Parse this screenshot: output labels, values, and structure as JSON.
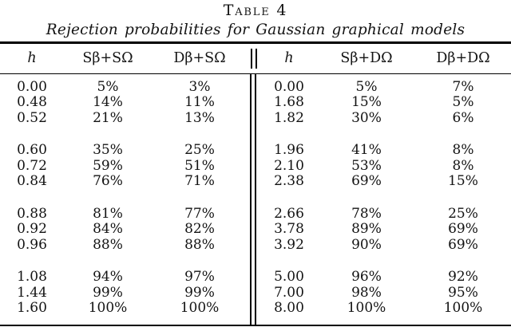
{
  "title": "Table 4",
  "subtitle": "Rejection probabilities for Gaussian graphical models",
  "table": {
    "header": {
      "cols": [
        "h",
        "Sβ+SΩ",
        "Dβ+SΩ",
        "h",
        "Sβ+DΩ",
        "Dβ+DΩ"
      ],
      "divider_symbol": "‖"
    },
    "row_groups": [
      [
        [
          "0.00",
          "5%",
          "3%",
          "0.00",
          "5%",
          "7%"
        ],
        [
          "0.48",
          "14%",
          "11%",
          "1.68",
          "15%",
          "5%"
        ],
        [
          "0.52",
          "21%",
          "13%",
          "1.82",
          "30%",
          "6%"
        ]
      ],
      [
        [
          "0.60",
          "35%",
          "25%",
          "1.96",
          "41%",
          "8%"
        ],
        [
          "0.72",
          "59%",
          "51%",
          "2.10",
          "53%",
          "8%"
        ],
        [
          "0.84",
          "76%",
          "71%",
          "2.38",
          "69%",
          "15%"
        ]
      ],
      [
        [
          "0.88",
          "81%",
          "77%",
          "2.66",
          "78%",
          "25%"
        ],
        [
          "0.92",
          "84%",
          "82%",
          "3.78",
          "89%",
          "69%"
        ],
        [
          "0.96",
          "88%",
          "88%",
          "3.92",
          "90%",
          "69%"
        ]
      ],
      [
        [
          "1.08",
          "94%",
          "97%",
          "5.00",
          "96%",
          "92%"
        ],
        [
          "1.44",
          "99%",
          "99%",
          "7.00",
          "98%",
          "95%"
        ],
        [
          "1.60",
          "100%",
          "100%",
          "8.00",
          "100%",
          "100%"
        ]
      ]
    ]
  }
}
